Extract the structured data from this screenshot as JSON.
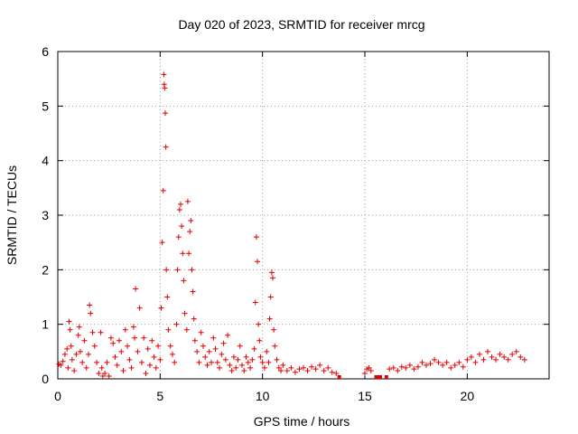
{
  "chart_data": {
    "type": "scatter",
    "title": "Day 020 of 2023, SRMTID for receiver mrcg",
    "xlabel": "GPS time / hours",
    "ylabel": "SRMTID / TECUs",
    "xlim": [
      0,
      24
    ],
    "ylim": [
      0,
      6
    ],
    "xticks": [
      "0",
      "5",
      "10",
      "15",
      "20"
    ],
    "yticks": [
      "0",
      "1",
      "2",
      "3",
      "4",
      "5",
      "6"
    ],
    "grid": true,
    "legend": "none",
    "marker_color": "#e00000",
    "marker": "plus",
    "series": [
      {
        "name": "SRMTID",
        "points": [
          [
            0.05,
            0.27
          ],
          [
            0.15,
            0.25
          ],
          [
            0.25,
            0.32
          ],
          [
            0.35,
            0.45
          ],
          [
            0.45,
            0.55
          ],
          [
            0.5,
            0.2
          ],
          [
            0.55,
            1.05
          ],
          [
            0.6,
            0.9
          ],
          [
            0.65,
            0.6
          ],
          [
            0.7,
            0.35
          ],
          [
            0.8,
            0.15
          ],
          [
            0.9,
            0.45
          ],
          [
            1.0,
            0.8
          ],
          [
            1.05,
            0.95
          ],
          [
            1.1,
            0.5
          ],
          [
            1.2,
            0.3
          ],
          [
            1.3,
            0.7
          ],
          [
            1.4,
            0.2
          ],
          [
            1.5,
            0.45
          ],
          [
            1.55,
            1.35
          ],
          [
            1.6,
            1.2
          ],
          [
            1.7,
            0.85
          ],
          [
            1.8,
            0.6
          ],
          [
            1.9,
            0.3
          ],
          [
            2.0,
            0.1
          ],
          [
            2.1,
            0.85
          ],
          [
            2.15,
            0.2
          ],
          [
            2.2,
            0.05
          ],
          [
            2.3,
            0.1
          ],
          [
            2.4,
            0.3
          ],
          [
            2.5,
            0.05
          ],
          [
            2.6,
            0.75
          ],
          [
            2.7,
            0.65
          ],
          [
            2.8,
            0.4
          ],
          [
            2.9,
            0.25
          ],
          [
            3.0,
            0.7
          ],
          [
            3.1,
            0.5
          ],
          [
            3.2,
            0.15
          ],
          [
            3.3,
            0.9
          ],
          [
            3.4,
            0.6
          ],
          [
            3.5,
            0.35
          ],
          [
            3.6,
            0.2
          ],
          [
            3.7,
            0.95
          ],
          [
            3.75,
            0.75
          ],
          [
            3.8,
            1.65
          ],
          [
            3.9,
            0.5
          ],
          [
            4.0,
            1.3
          ],
          [
            4.1,
            0.3
          ],
          [
            4.2,
            0.75
          ],
          [
            4.3,
            0.1
          ],
          [
            4.4,
            0.55
          ],
          [
            4.5,
            0.25
          ],
          [
            4.6,
            0.7
          ],
          [
            4.7,
            0.4
          ],
          [
            4.8,
            0.2
          ],
          [
            4.9,
            0.6
          ],
          [
            5.0,
            0.35
          ],
          [
            5.05,
            1.3
          ],
          [
            5.1,
            2.5
          ],
          [
            5.15,
            3.45
          ],
          [
            5.18,
            5.58
          ],
          [
            5.2,
            5.4
          ],
          [
            5.22,
            5.33
          ],
          [
            5.25,
            4.87
          ],
          [
            5.28,
            4.25
          ],
          [
            5.3,
            2.0
          ],
          [
            5.35,
            1.5
          ],
          [
            5.4,
            0.9
          ],
          [
            5.5,
            0.6
          ],
          [
            5.6,
            0.45
          ],
          [
            5.7,
            0.3
          ],
          [
            5.8,
            1.0
          ],
          [
            5.85,
            2.0
          ],
          [
            5.9,
            2.6
          ],
          [
            5.95,
            3.1
          ],
          [
            6.0,
            3.2
          ],
          [
            6.05,
            2.8
          ],
          [
            6.1,
            2.3
          ],
          [
            6.15,
            1.8
          ],
          [
            6.2,
            1.2
          ],
          [
            6.3,
            0.9
          ],
          [
            6.35,
            3.25
          ],
          [
            6.4,
            2.3
          ],
          [
            6.45,
            2.7
          ],
          [
            6.5,
            2.9
          ],
          [
            6.55,
            2.0
          ],
          [
            6.6,
            1.6
          ],
          [
            6.65,
            1.1
          ],
          [
            6.7,
            0.7
          ],
          [
            6.8,
            0.5
          ],
          [
            6.9,
            0.3
          ],
          [
            7.0,
            0.85
          ],
          [
            7.1,
            0.6
          ],
          [
            7.2,
            0.4
          ],
          [
            7.3,
            0.25
          ],
          [
            7.4,
            0.5
          ],
          [
            7.5,
            0.3
          ],
          [
            7.6,
            0.75
          ],
          [
            7.7,
            0.55
          ],
          [
            7.8,
            0.3
          ],
          [
            7.9,
            0.2
          ],
          [
            8.0,
            0.45
          ],
          [
            8.1,
            0.65
          ],
          [
            8.2,
            0.35
          ],
          [
            8.3,
            0.8
          ],
          [
            8.4,
            0.25
          ],
          [
            8.5,
            0.15
          ],
          [
            8.6,
            0.4
          ],
          [
            8.7,
            0.2
          ],
          [
            8.8,
            0.35
          ],
          [
            8.9,
            0.6
          ],
          [
            9.0,
            0.25
          ],
          [
            9.1,
            0.15
          ],
          [
            9.2,
            0.4
          ],
          [
            9.3,
            0.3
          ],
          [
            9.4,
            0.2
          ],
          [
            9.5,
            0.35
          ],
          [
            9.6,
            0.55
          ],
          [
            9.65,
            1.4
          ],
          [
            9.7,
            2.6
          ],
          [
            9.75,
            2.15
          ],
          [
            9.8,
            1.0
          ],
          [
            9.85,
            0.7
          ],
          [
            9.9,
            0.4
          ],
          [
            10.0,
            0.3
          ],
          [
            10.1,
            0.2
          ],
          [
            10.2,
            0.5
          ],
          [
            10.3,
            0.3
          ],
          [
            10.35,
            1.1
          ],
          [
            10.4,
            1.5
          ],
          [
            10.45,
            1.95
          ],
          [
            10.5,
            1.85
          ],
          [
            10.55,
            0.9
          ],
          [
            10.6,
            0.6
          ],
          [
            10.7,
            0.35
          ],
          [
            10.8,
            0.2
          ],
          [
            10.9,
            0.15
          ],
          [
            11.0,
            0.25
          ],
          [
            11.2,
            0.15
          ],
          [
            11.4,
            0.2
          ],
          [
            11.6,
            0.12
          ],
          [
            11.8,
            0.18
          ],
          [
            12.0,
            0.2
          ],
          [
            12.2,
            0.15
          ],
          [
            12.4,
            0.22
          ],
          [
            12.6,
            0.18
          ],
          [
            12.8,
            0.25
          ],
          [
            13.0,
            0.15
          ],
          [
            13.2,
            0.2
          ],
          [
            13.4,
            0.12
          ],
          [
            13.6,
            0.1
          ],
          [
            15.0,
            0.1
          ],
          [
            15.1,
            0.18
          ],
          [
            15.2,
            0.2
          ],
          [
            15.3,
            0.15
          ],
          [
            16.2,
            0.18
          ],
          [
            16.4,
            0.2
          ],
          [
            16.6,
            0.15
          ],
          [
            16.8,
            0.22
          ],
          [
            17.0,
            0.2
          ],
          [
            17.2,
            0.25
          ],
          [
            17.4,
            0.18
          ],
          [
            17.6,
            0.22
          ],
          [
            17.8,
            0.3
          ],
          [
            18.0,
            0.25
          ],
          [
            18.2,
            0.28
          ],
          [
            18.4,
            0.35
          ],
          [
            18.6,
            0.3
          ],
          [
            18.8,
            0.25
          ],
          [
            19.0,
            0.3
          ],
          [
            19.2,
            0.2
          ],
          [
            19.4,
            0.25
          ],
          [
            19.6,
            0.3
          ],
          [
            19.8,
            0.22
          ],
          [
            20.0,
            0.35
          ],
          [
            20.2,
            0.4
          ],
          [
            20.4,
            0.3
          ],
          [
            20.6,
            0.45
          ],
          [
            20.8,
            0.35
          ],
          [
            21.0,
            0.5
          ],
          [
            21.2,
            0.4
          ],
          [
            21.4,
            0.35
          ],
          [
            21.6,
            0.45
          ],
          [
            21.8,
            0.4
          ],
          [
            22.0,
            0.35
          ],
          [
            22.2,
            0.45
          ],
          [
            22.4,
            0.5
          ],
          [
            22.6,
            0.4
          ],
          [
            22.8,
            0.35
          ]
        ],
        "gap_squares": [
          [
            13.75,
            0.0
          ],
          [
            15.55,
            0.0
          ],
          [
            15.65,
            0.0
          ],
          [
            15.75,
            0.0
          ],
          [
            16.05,
            0.0
          ]
        ]
      }
    ]
  }
}
